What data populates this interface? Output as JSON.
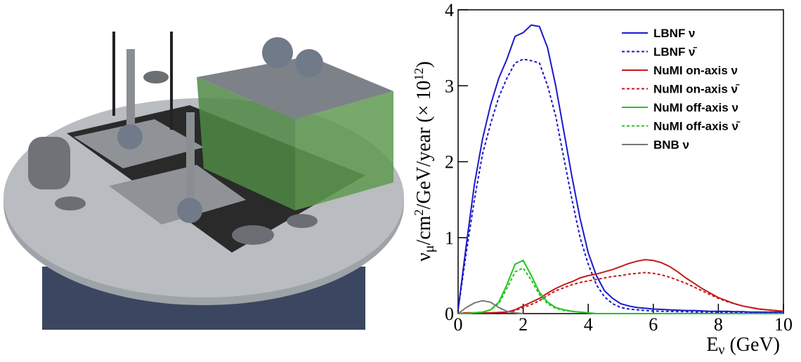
{
  "chart_data": {
    "type": "line",
    "x": [
      0,
      0.25,
      0.5,
      0.75,
      1,
      1.25,
      1.5,
      1.75,
      2,
      2.25,
      2.5,
      2.75,
      3,
      3.25,
      3.5,
      3.75,
      4,
      4.25,
      4.5,
      4.75,
      5,
      5.25,
      5.5,
      5.75,
      6,
      6.25,
      6.5,
      6.75,
      7,
      7.25,
      7.5,
      7.75,
      8,
      8.25,
      8.5,
      8.75,
      9,
      9.25,
      9.5,
      9.75,
      10
    ],
    "xlabel_parts": [
      "E",
      "ν",
      " (GeV)"
    ],
    "ylabel_parts": [
      "ν",
      "μ",
      "/cm",
      "2",
      "/GeV/year (× 10",
      "12",
      ")"
    ],
    "xlim": [
      0,
      10
    ],
    "xticks": [
      0,
      2,
      4,
      6,
      8,
      10
    ],
    "ylim": [
      0,
      4
    ],
    "yticks": [
      0,
      1,
      2,
      3,
      4
    ],
    "legend": "top-right",
    "series": [
      {
        "name": "LBNF ν",
        "color": "#1a1acc",
        "dash": false,
        "values": [
          0.05,
          0.9,
          1.7,
          2.3,
          2.75,
          3.1,
          3.35,
          3.65,
          3.7,
          3.8,
          3.78,
          3.5,
          3.0,
          2.4,
          1.8,
          1.25,
          0.8,
          0.5,
          0.3,
          0.2,
          0.13,
          0.1,
          0.08,
          0.07,
          0.06,
          0.055,
          0.05,
          0.045,
          0.04,
          0.04,
          0.035,
          0.03,
          0.03,
          0.03,
          0.025,
          0.025,
          0.02,
          0.02,
          0.02,
          0.02,
          0.02
        ]
      },
      {
        "name": "LBNF ν̄",
        "color": "#1a1acc",
        "dash": true,
        "values": [
          0.05,
          0.8,
          1.5,
          2.1,
          2.5,
          2.85,
          3.1,
          3.3,
          3.35,
          3.33,
          3.3,
          3.0,
          2.6,
          2.05,
          1.5,
          1.0,
          0.65,
          0.38,
          0.22,
          0.13,
          0.08,
          0.06,
          0.05,
          0.04,
          0.035,
          0.03,
          0.03,
          0.025,
          0.025,
          0.02,
          0.02,
          0.02,
          0.015,
          0.015,
          0.015,
          0.01,
          0.01,
          0.01,
          0.01,
          0.01,
          0.01
        ]
      },
      {
        "name": "NuMI on-axis ν",
        "color": "#c41a1a",
        "dash": false,
        "values": [
          0,
          0.01,
          0.01,
          0.01,
          0.01,
          0.015,
          0.02,
          0.05,
          0.1,
          0.15,
          0.2,
          0.27,
          0.33,
          0.38,
          0.42,
          0.47,
          0.5,
          0.52,
          0.55,
          0.58,
          0.62,
          0.66,
          0.69,
          0.71,
          0.7,
          0.67,
          0.62,
          0.55,
          0.47,
          0.4,
          0.33,
          0.27,
          0.21,
          0.17,
          0.13,
          0.1,
          0.08,
          0.06,
          0.05,
          0.04,
          0.03
        ]
      },
      {
        "name": "NuMI on-axis ν̄",
        "color": "#c41a1a",
        "dash": true,
        "values": [
          0,
          0.01,
          0.01,
          0.01,
          0.01,
          0.015,
          0.02,
          0.04,
          0.08,
          0.12,
          0.17,
          0.24,
          0.3,
          0.34,
          0.38,
          0.41,
          0.43,
          0.45,
          0.47,
          0.49,
          0.5,
          0.52,
          0.53,
          0.54,
          0.53,
          0.51,
          0.48,
          0.44,
          0.4,
          0.35,
          0.3,
          0.25,
          0.2,
          0.16,
          0.13,
          0.1,
          0.08,
          0.06,
          0.05,
          0.04,
          0.03
        ]
      },
      {
        "name": "NuMI off-axis ν",
        "color": "#22c422",
        "dash": false,
        "values": [
          0,
          0,
          0.01,
          0.02,
          0.05,
          0.15,
          0.38,
          0.65,
          0.7,
          0.5,
          0.28,
          0.15,
          0.08,
          0.05,
          0.03,
          0.02,
          0.01,
          0,
          0,
          0,
          0,
          0,
          0,
          0,
          0,
          0,
          0,
          0,
          0,
          0,
          0,
          0,
          0,
          0,
          0,
          0,
          0,
          0,
          0,
          0,
          0
        ]
      },
      {
        "name": "NuMI off-axis ν̄",
        "color": "#22c422",
        "dash": true,
        "values": [
          0,
          0,
          0.01,
          0.02,
          0.05,
          0.13,
          0.33,
          0.55,
          0.6,
          0.44,
          0.25,
          0.13,
          0.07,
          0.04,
          0.03,
          0.02,
          0.01,
          0,
          0,
          0,
          0,
          0,
          0,
          0,
          0,
          0,
          0,
          0,
          0,
          0,
          0,
          0,
          0,
          0,
          0,
          0,
          0,
          0,
          0,
          0,
          0
        ]
      },
      {
        "name": "BNB ν",
        "color": "#777777",
        "dash": false,
        "values": [
          0,
          0.08,
          0.14,
          0.17,
          0.15,
          0.08,
          0.03,
          0.01,
          0,
          null,
          null,
          null,
          null,
          null,
          null,
          null,
          null,
          null,
          null,
          null,
          null,
          null,
          null,
          null,
          null,
          null,
          null,
          null,
          null,
          null,
          null,
          null,
          null,
          null,
          null,
          null,
          null,
          null,
          null,
          null,
          null
        ]
      }
    ]
  }
}
